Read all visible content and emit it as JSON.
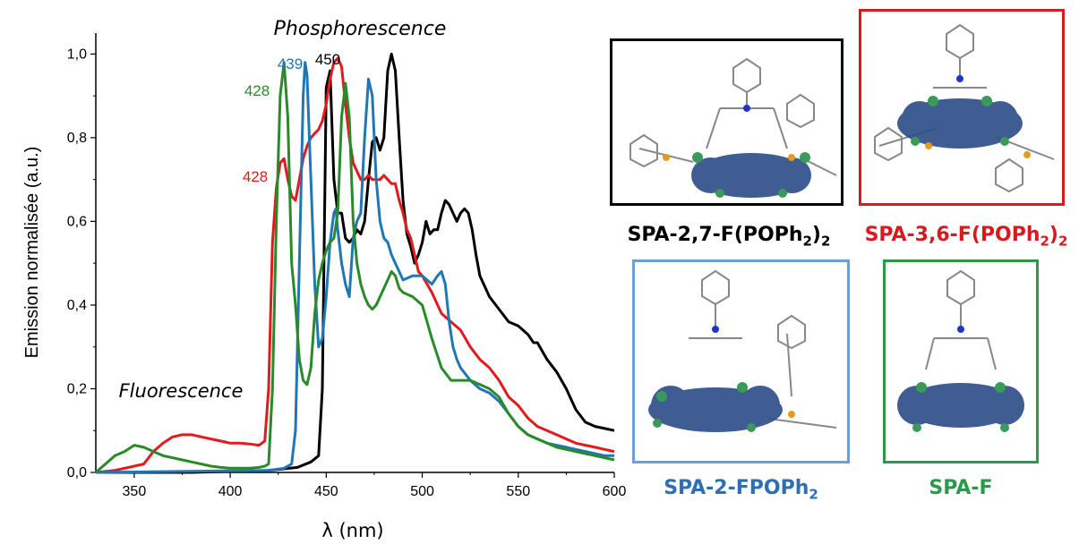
{
  "chart_data": {
    "type": "line",
    "xlabel": "λ (nm)",
    "ylabel": "Emission normalisée (a.u.)",
    "xlim": [
      330,
      600
    ],
    "ylim": [
      0,
      1.05
    ],
    "x_ticks": [
      "350",
      "400",
      "450",
      "500",
      "550",
      "600"
    ],
    "x_tick_values": [
      350,
      400,
      450,
      500,
      550,
      600
    ],
    "y_ticks": [
      "0,0",
      "0,2",
      "0,4",
      "0,6",
      "0,8",
      "1,0"
    ],
    "y_tick_values": [
      0,
      0.2,
      0.4,
      0.6,
      0.8,
      1.0
    ],
    "grid": false,
    "annotations": {
      "phosphorescence": "Phosphorescence",
      "fluorescence": "Fluorescence",
      "peak_green": "428",
      "peak_blue": "439",
      "peak_black": "450",
      "peak_red": "428"
    },
    "series": [
      {
        "color": "#000000",
        "points": [
          [
            330,
            0
          ],
          [
            380,
            0
          ],
          [
            420,
            0.005
          ],
          [
            435,
            0.012
          ],
          [
            442,
            0.025
          ],
          [
            446,
            0.04
          ],
          [
            448,
            0.2
          ],
          [
            450,
            0.92
          ],
          [
            452,
            0.96
          ],
          [
            454,
            0.7
          ],
          [
            456,
            0.62
          ],
          [
            458,
            0.62
          ],
          [
            460,
            0.56
          ],
          [
            462,
            0.55
          ],
          [
            464,
            0.56
          ],
          [
            466,
            0.58
          ],
          [
            468,
            0.57
          ],
          [
            470,
            0.6
          ],
          [
            472,
            0.7
          ],
          [
            474,
            0.79
          ],
          [
            476,
            0.8
          ],
          [
            478,
            0.77
          ],
          [
            480,
            0.8
          ],
          [
            482,
            0.96
          ],
          [
            484,
            1.0
          ],
          [
            486,
            0.96
          ],
          [
            488,
            0.8
          ],
          [
            490,
            0.65
          ],
          [
            492,
            0.57
          ],
          [
            494,
            0.54
          ],
          [
            496,
            0.5
          ],
          [
            498,
            0.52
          ],
          [
            500,
            0.55
          ],
          [
            502,
            0.6
          ],
          [
            504,
            0.57
          ],
          [
            506,
            0.58
          ],
          [
            508,
            0.58
          ],
          [
            510,
            0.62
          ],
          [
            512,
            0.65
          ],
          [
            514,
            0.64
          ],
          [
            516,
            0.62
          ],
          [
            518,
            0.6
          ],
          [
            520,
            0.62
          ],
          [
            522,
            0.63
          ],
          [
            524,
            0.62
          ],
          [
            526,
            0.58
          ],
          [
            528,
            0.52
          ],
          [
            530,
            0.47
          ],
          [
            535,
            0.42
          ],
          [
            540,
            0.39
          ],
          [
            545,
            0.36
          ],
          [
            550,
            0.35
          ],
          [
            555,
            0.33
          ],
          [
            558,
            0.31
          ],
          [
            560,
            0.31
          ],
          [
            565,
            0.27
          ],
          [
            570,
            0.24
          ],
          [
            575,
            0.2
          ],
          [
            580,
            0.15
          ],
          [
            585,
            0.12
          ],
          [
            590,
            0.11
          ],
          [
            595,
            0.105
          ],
          [
            600,
            0.1
          ]
        ]
      },
      {
        "color": "#e31a1c",
        "points": [
          [
            330,
            0
          ],
          [
            340,
            0.005
          ],
          [
            350,
            0.015
          ],
          [
            355,
            0.02
          ],
          [
            360,
            0.05
          ],
          [
            365,
            0.07
          ],
          [
            370,
            0.085
          ],
          [
            375,
            0.09
          ],
          [
            380,
            0.09
          ],
          [
            385,
            0.085
          ],
          [
            390,
            0.08
          ],
          [
            395,
            0.075
          ],
          [
            400,
            0.07
          ],
          [
            405,
            0.07
          ],
          [
            410,
            0.068
          ],
          [
            415,
            0.065
          ],
          [
            418,
            0.075
          ],
          [
            420,
            0.2
          ],
          [
            422,
            0.55
          ],
          [
            424,
            0.68
          ],
          [
            426,
            0.74
          ],
          [
            428,
            0.75
          ],
          [
            430,
            0.7
          ],
          [
            432,
            0.66
          ],
          [
            434,
            0.65
          ],
          [
            436,
            0.7
          ],
          [
            438,
            0.75
          ],
          [
            440,
            0.78
          ],
          [
            442,
            0.8
          ],
          [
            444,
            0.81
          ],
          [
            446,
            0.82
          ],
          [
            448,
            0.84
          ],
          [
            450,
            0.88
          ],
          [
            452,
            0.94
          ],
          [
            454,
            0.98
          ],
          [
            456,
            0.99
          ],
          [
            458,
            0.97
          ],
          [
            460,
            0.88
          ],
          [
            462,
            0.8
          ],
          [
            464,
            0.74
          ],
          [
            466,
            0.72
          ],
          [
            468,
            0.7
          ],
          [
            470,
            0.7
          ],
          [
            472,
            0.71
          ],
          [
            474,
            0.7
          ],
          [
            476,
            0.7
          ],
          [
            478,
            0.7
          ],
          [
            480,
            0.71
          ],
          [
            482,
            0.7
          ],
          [
            484,
            0.69
          ],
          [
            486,
            0.69
          ],
          [
            488,
            0.65
          ],
          [
            490,
            0.62
          ],
          [
            492,
            0.58
          ],
          [
            494,
            0.56
          ],
          [
            496,
            0.52
          ],
          [
            498,
            0.48
          ],
          [
            500,
            0.47
          ],
          [
            505,
            0.43
          ],
          [
            510,
            0.38
          ],
          [
            515,
            0.36
          ],
          [
            520,
            0.34
          ],
          [
            525,
            0.3
          ],
          [
            530,
            0.27
          ],
          [
            535,
            0.25
          ],
          [
            540,
            0.22
          ],
          [
            545,
            0.18
          ],
          [
            550,
            0.16
          ],
          [
            555,
            0.13
          ],
          [
            560,
            0.11
          ],
          [
            565,
            0.1
          ],
          [
            570,
            0.09
          ],
          [
            575,
            0.08
          ],
          [
            580,
            0.07
          ],
          [
            585,
            0.065
          ],
          [
            590,
            0.06
          ],
          [
            595,
            0.055
          ],
          [
            600,
            0.05
          ]
        ]
      },
      {
        "color": "#1f77b4",
        "points": [
          [
            330,
            0
          ],
          [
            420,
            0.005
          ],
          [
            428,
            0.01
          ],
          [
            432,
            0.02
          ],
          [
            434,
            0.1
          ],
          [
            436,
            0.5
          ],
          [
            438,
            0.9
          ],
          [
            439,
            0.98
          ],
          [
            440,
            0.95
          ],
          [
            442,
            0.7
          ],
          [
            444,
            0.45
          ],
          [
            446,
            0.3
          ],
          [
            448,
            0.32
          ],
          [
            450,
            0.42
          ],
          [
            452,
            0.55
          ],
          [
            454,
            0.62
          ],
          [
            455,
            0.63
          ],
          [
            456,
            0.58
          ],
          [
            458,
            0.5
          ],
          [
            460,
            0.45
          ],
          [
            462,
            0.42
          ],
          [
            464,
            0.56
          ],
          [
            466,
            0.6
          ],
          [
            468,
            0.62
          ],
          [
            470,
            0.8
          ],
          [
            472,
            0.94
          ],
          [
            474,
            0.9
          ],
          [
            476,
            0.7
          ],
          [
            478,
            0.6
          ],
          [
            480,
            0.56
          ],
          [
            482,
            0.55
          ],
          [
            484,
            0.52
          ],
          [
            486,
            0.5
          ],
          [
            488,
            0.48
          ],
          [
            490,
            0.46
          ],
          [
            495,
            0.47
          ],
          [
            500,
            0.47
          ],
          [
            505,
            0.45
          ],
          [
            508,
            0.47
          ],
          [
            510,
            0.48
          ],
          [
            512,
            0.45
          ],
          [
            514,
            0.36
          ],
          [
            516,
            0.3
          ],
          [
            518,
            0.27
          ],
          [
            520,
            0.25
          ],
          [
            525,
            0.22
          ],
          [
            530,
            0.2
          ],
          [
            535,
            0.19
          ],
          [
            540,
            0.17
          ],
          [
            545,
            0.14
          ],
          [
            550,
            0.11
          ],
          [
            555,
            0.09
          ],
          [
            560,
            0.08
          ],
          [
            565,
            0.07
          ],
          [
            570,
            0.065
          ],
          [
            575,
            0.06
          ],
          [
            580,
            0.055
          ],
          [
            585,
            0.05
          ],
          [
            590,
            0.045
          ],
          [
            595,
            0.04
          ],
          [
            600,
            0.04
          ]
        ]
      },
      {
        "color": "#2a8a2a",
        "points": [
          [
            330,
            0
          ],
          [
            335,
            0.02
          ],
          [
            340,
            0.04
          ],
          [
            345,
            0.05
          ],
          [
            350,
            0.065
          ],
          [
            355,
            0.06
          ],
          [
            360,
            0.05
          ],
          [
            365,
            0.04
          ],
          [
            370,
            0.035
          ],
          [
            375,
            0.03
          ],
          [
            380,
            0.025
          ],
          [
            385,
            0.02
          ],
          [
            390,
            0.015
          ],
          [
            395,
            0.012
          ],
          [
            400,
            0.01
          ],
          [
            405,
            0.01
          ],
          [
            410,
            0.01
          ],
          [
            415,
            0.012
          ],
          [
            418,
            0.015
          ],
          [
            420,
            0.02
          ],
          [
            422,
            0.2
          ],
          [
            424,
            0.6
          ],
          [
            426,
            0.9
          ],
          [
            428,
            0.98
          ],
          [
            430,
            0.85
          ],
          [
            432,
            0.5
          ],
          [
            434,
            0.4
          ],
          [
            436,
            0.27
          ],
          [
            438,
            0.22
          ],
          [
            440,
            0.21
          ],
          [
            442,
            0.25
          ],
          [
            444,
            0.38
          ],
          [
            446,
            0.46
          ],
          [
            448,
            0.5
          ],
          [
            450,
            0.53
          ],
          [
            452,
            0.55
          ],
          [
            454,
            0.56
          ],
          [
            456,
            0.62
          ],
          [
            458,
            0.85
          ],
          [
            460,
            0.93
          ],
          [
            462,
            0.85
          ],
          [
            464,
            0.6
          ],
          [
            466,
            0.5
          ],
          [
            468,
            0.45
          ],
          [
            470,
            0.42
          ],
          [
            472,
            0.4
          ],
          [
            474,
            0.39
          ],
          [
            476,
            0.4
          ],
          [
            478,
            0.42
          ],
          [
            480,
            0.44
          ],
          [
            482,
            0.46
          ],
          [
            484,
            0.48
          ],
          [
            486,
            0.47
          ],
          [
            488,
            0.44
          ],
          [
            490,
            0.43
          ],
          [
            495,
            0.42
          ],
          [
            500,
            0.4
          ],
          [
            505,
            0.32
          ],
          [
            510,
            0.25
          ],
          [
            515,
            0.22
          ],
          [
            520,
            0.22
          ],
          [
            525,
            0.22
          ],
          [
            530,
            0.21
          ],
          [
            535,
            0.2
          ],
          [
            540,
            0.18
          ],
          [
            545,
            0.14
          ],
          [
            550,
            0.11
          ],
          [
            555,
            0.09
          ],
          [
            560,
            0.08
          ],
          [
            565,
            0.07
          ],
          [
            570,
            0.06
          ],
          [
            575,
            0.055
          ],
          [
            580,
            0.05
          ],
          [
            585,
            0.045
          ],
          [
            590,
            0.04
          ],
          [
            595,
            0.035
          ],
          [
            600,
            0.03
          ]
        ]
      }
    ]
  },
  "molecules": [
    {
      "id": "spa-27",
      "name_main": "SPA-2,7-F(POPh",
      "name_sub": "2",
      "name_close": ")",
      "name_sub2": "2",
      "color": "#000000"
    },
    {
      "id": "spa-36",
      "name_main": "SPA-3,6-F(POPh",
      "name_sub": "2",
      "name_close": ")",
      "name_sub2": "2",
      "color": "#d71920"
    },
    {
      "id": "spa-2f",
      "name_main": "SPA-2-FPOPh",
      "name_sub": "2",
      "name_close": "",
      "name_sub2": "",
      "color": "#2e6eb5"
    },
    {
      "id": "spa-f",
      "name_main": "SPA-F",
      "name_sub": "",
      "name_close": "",
      "name_sub2": "",
      "color": "#2a9a4a"
    }
  ]
}
